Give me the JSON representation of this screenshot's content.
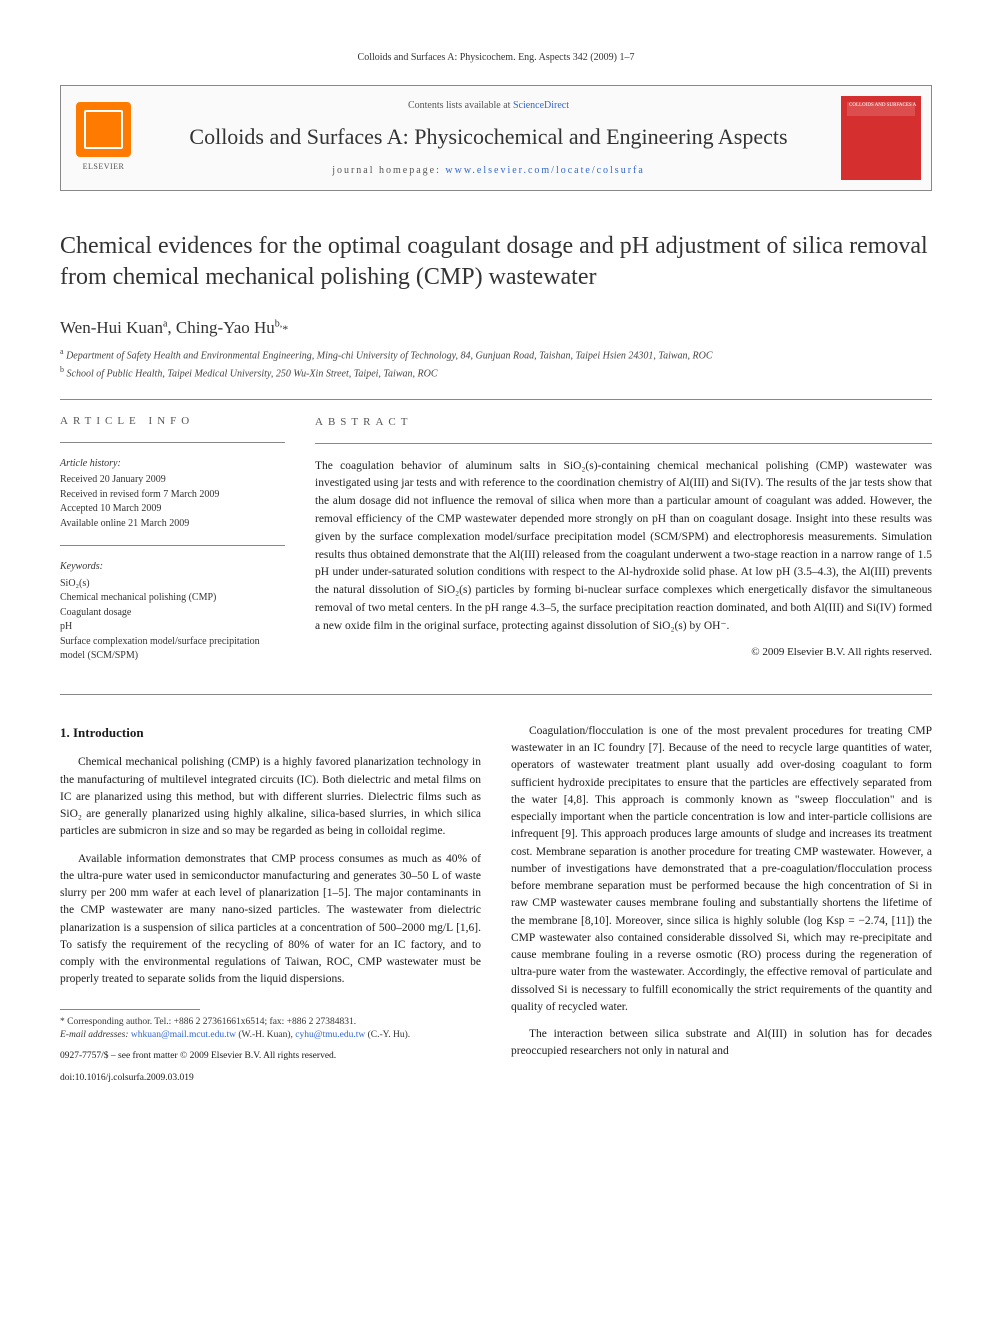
{
  "citation": "Colloids and Surfaces A: Physicochem. Eng. Aspects 342 (2009) 1–7",
  "header": {
    "contents_prefix": "Contents lists available at ",
    "contents_link": "ScienceDirect",
    "journal": "Colloids and Surfaces A: Physicochemical and Engineering Aspects",
    "homepage_label": "journal homepage: ",
    "homepage_url": "www.elsevier.com/locate/colsurfa",
    "publisher": "ELSEVIER",
    "cover_label": "COLLOIDS AND SURFACES A"
  },
  "title": "Chemical evidences for the optimal coagulant dosage and pH adjustment of silica removal from chemical mechanical polishing (CMP) wastewater",
  "authors": [
    {
      "name": "Wen-Hui Kuan",
      "marker": "a"
    },
    {
      "name": "Ching-Yao Hu",
      "marker": "b,",
      "corresp": true
    }
  ],
  "affiliations": [
    {
      "marker": "a",
      "text": "Department of Safety Health and Environmental Engineering, Ming-chi University of Technology, 84, Gunjuan Road, Taishan, Taipei Hsien 24301, Taiwan, ROC"
    },
    {
      "marker": "b",
      "text": "School of Public Health, Taipei Medical University, 250 Wu-Xin Street, Taipei, Taiwan, ROC"
    }
  ],
  "article_info": {
    "label": "ARTICLE INFO",
    "history_heading": "Article history:",
    "history": [
      "Received 20 January 2009",
      "Received in revised form 7 March 2009",
      "Accepted 10 March 2009",
      "Available online 21 March 2009"
    ],
    "keywords_heading": "Keywords:",
    "keywords": [
      "SiO₂(s)",
      "Chemical mechanical polishing (CMP)",
      "Coagulant dosage",
      "pH",
      "Surface complexation model/surface precipitation model (SCM/SPM)"
    ]
  },
  "abstract": {
    "label": "ABSTRACT",
    "text": "The coagulation behavior of aluminum salts in SiO₂(s)-containing chemical mechanical polishing (CMP) wastewater was investigated using jar tests and with reference to the coordination chemistry of Al(III) and Si(IV). The results of the jar tests show that the alum dosage did not influence the removal of silica when more than a particular amount of coagulant was added. However, the removal efficiency of the CMP wastewater depended more strongly on pH than on coagulant dosage. Insight into these results was given by the surface complexation model/surface precipitation model (SCM/SPM) and electrophoresis measurements. Simulation results thus obtained demonstrate that the Al(III) released from the coagulant underwent a two-stage reaction in a narrow range of 1.5 pH under under-saturated solution conditions with respect to the Al-hydroxide solid phase. At low pH (3.5–4.3), the Al(III) prevents the natural dissolution of SiO₂(s) particles by forming bi-nuclear surface complexes which energetically disfavor the simultaneous removal of two metal centers. In the pH range 4.3–5, the surface precipitation reaction dominated, and both Al(III) and Si(IV) formed a new oxide film in the original surface, protecting against dissolution of SiO₂(s) by OH⁻.",
    "copyright": "© 2009 Elsevier B.V. All rights reserved."
  },
  "body": {
    "intro_heading": "1. Introduction",
    "left_paragraphs": [
      "Chemical mechanical polishing (CMP) is a highly favored planarization technology in the manufacturing of multilevel integrated circuits (IC). Both dielectric and metal films on IC are planarized using this method, but with different slurries. Dielectric films such as SiO₂ are generally planarized using highly alkaline, silica-based slurries, in which silica particles are submicron in size and so may be regarded as being in colloidal regime.",
      "Available information demonstrates that CMP process consumes as much as 40% of the ultra-pure water used in semiconductor manufacturing and generates 30–50 L of waste slurry per 200 mm wafer at each level of planarization [1–5]. The major contaminants in the CMP wastewater are many nano-sized particles. The wastewater from dielectric planarization is a suspension of silica particles at a concentration of 500–2000 mg/L [1,6]. To satisfy the requirement of the recycling of 80% of water for an IC factory, and to comply with the environmental regulations of Taiwan, ROC, CMP wastewater must be properly treated to separate solids from the liquid dispersions."
    ],
    "right_paragraphs": [
      "Coagulation/flocculation is one of the most prevalent procedures for treating CMP wastewater in an IC foundry [7]. Because of the need to recycle large quantities of water, operators of wastewater treatment plant usually add over-dosing coagulant to form sufficient hydroxide precipitates to ensure that the particles are effectively separated from the water [4,8]. This approach is commonly known as \"sweep flocculation\" and is especially important when the particle concentration is low and inter-particle collisions are infrequent [9]. This approach produces large amounts of sludge and increases its treatment cost. Membrane separation is another procedure for treating CMP wastewater. However, a number of investigations have demonstrated that a pre-coagulation/flocculation process before membrane separation must be performed because the high concentration of Si in raw CMP wastewater causes membrane fouling and substantially shortens the lifetime of the membrane [8,10]. Moreover, since silica is highly soluble (log Ksp = −2.74, [11]) the CMP wastewater also contained considerable dissolved Si, which may re-precipitate and cause membrane fouling in a reverse osmotic (RO) process during the regeneration of ultra-pure water from the wastewater. Accordingly, the effective removal of particulate and dissolved Si is necessary to fulfill economically the strict requirements of the quantity and quality of recycled water.",
      "The interaction between silica substrate and Al(III) in solution has for decades preoccupied researchers not only in natural and"
    ]
  },
  "footnotes": {
    "corresp": "* Corresponding author. Tel.: +886 2 27361661x6514; fax: +886 2 27384831.",
    "emails_label": "E-mail addresses:",
    "emails": [
      {
        "addr": "whkuan@mail.mcut.edu.tw",
        "who": "(W.-H. Kuan),"
      },
      {
        "addr": "cyhu@tmu.edu.tw",
        "who": "(C.-Y. Hu)."
      }
    ]
  },
  "bottom": {
    "issn": "0927-7757/$ – see front matter © 2009 Elsevier B.V. All rights reserved.",
    "doi": "doi:10.1016/j.colsurfa.2009.03.019"
  },
  "colors": {
    "link": "#3366cc",
    "elsevier_orange": "#ff7a00",
    "cover_red": "#d62f2f",
    "rule": "#888"
  }
}
